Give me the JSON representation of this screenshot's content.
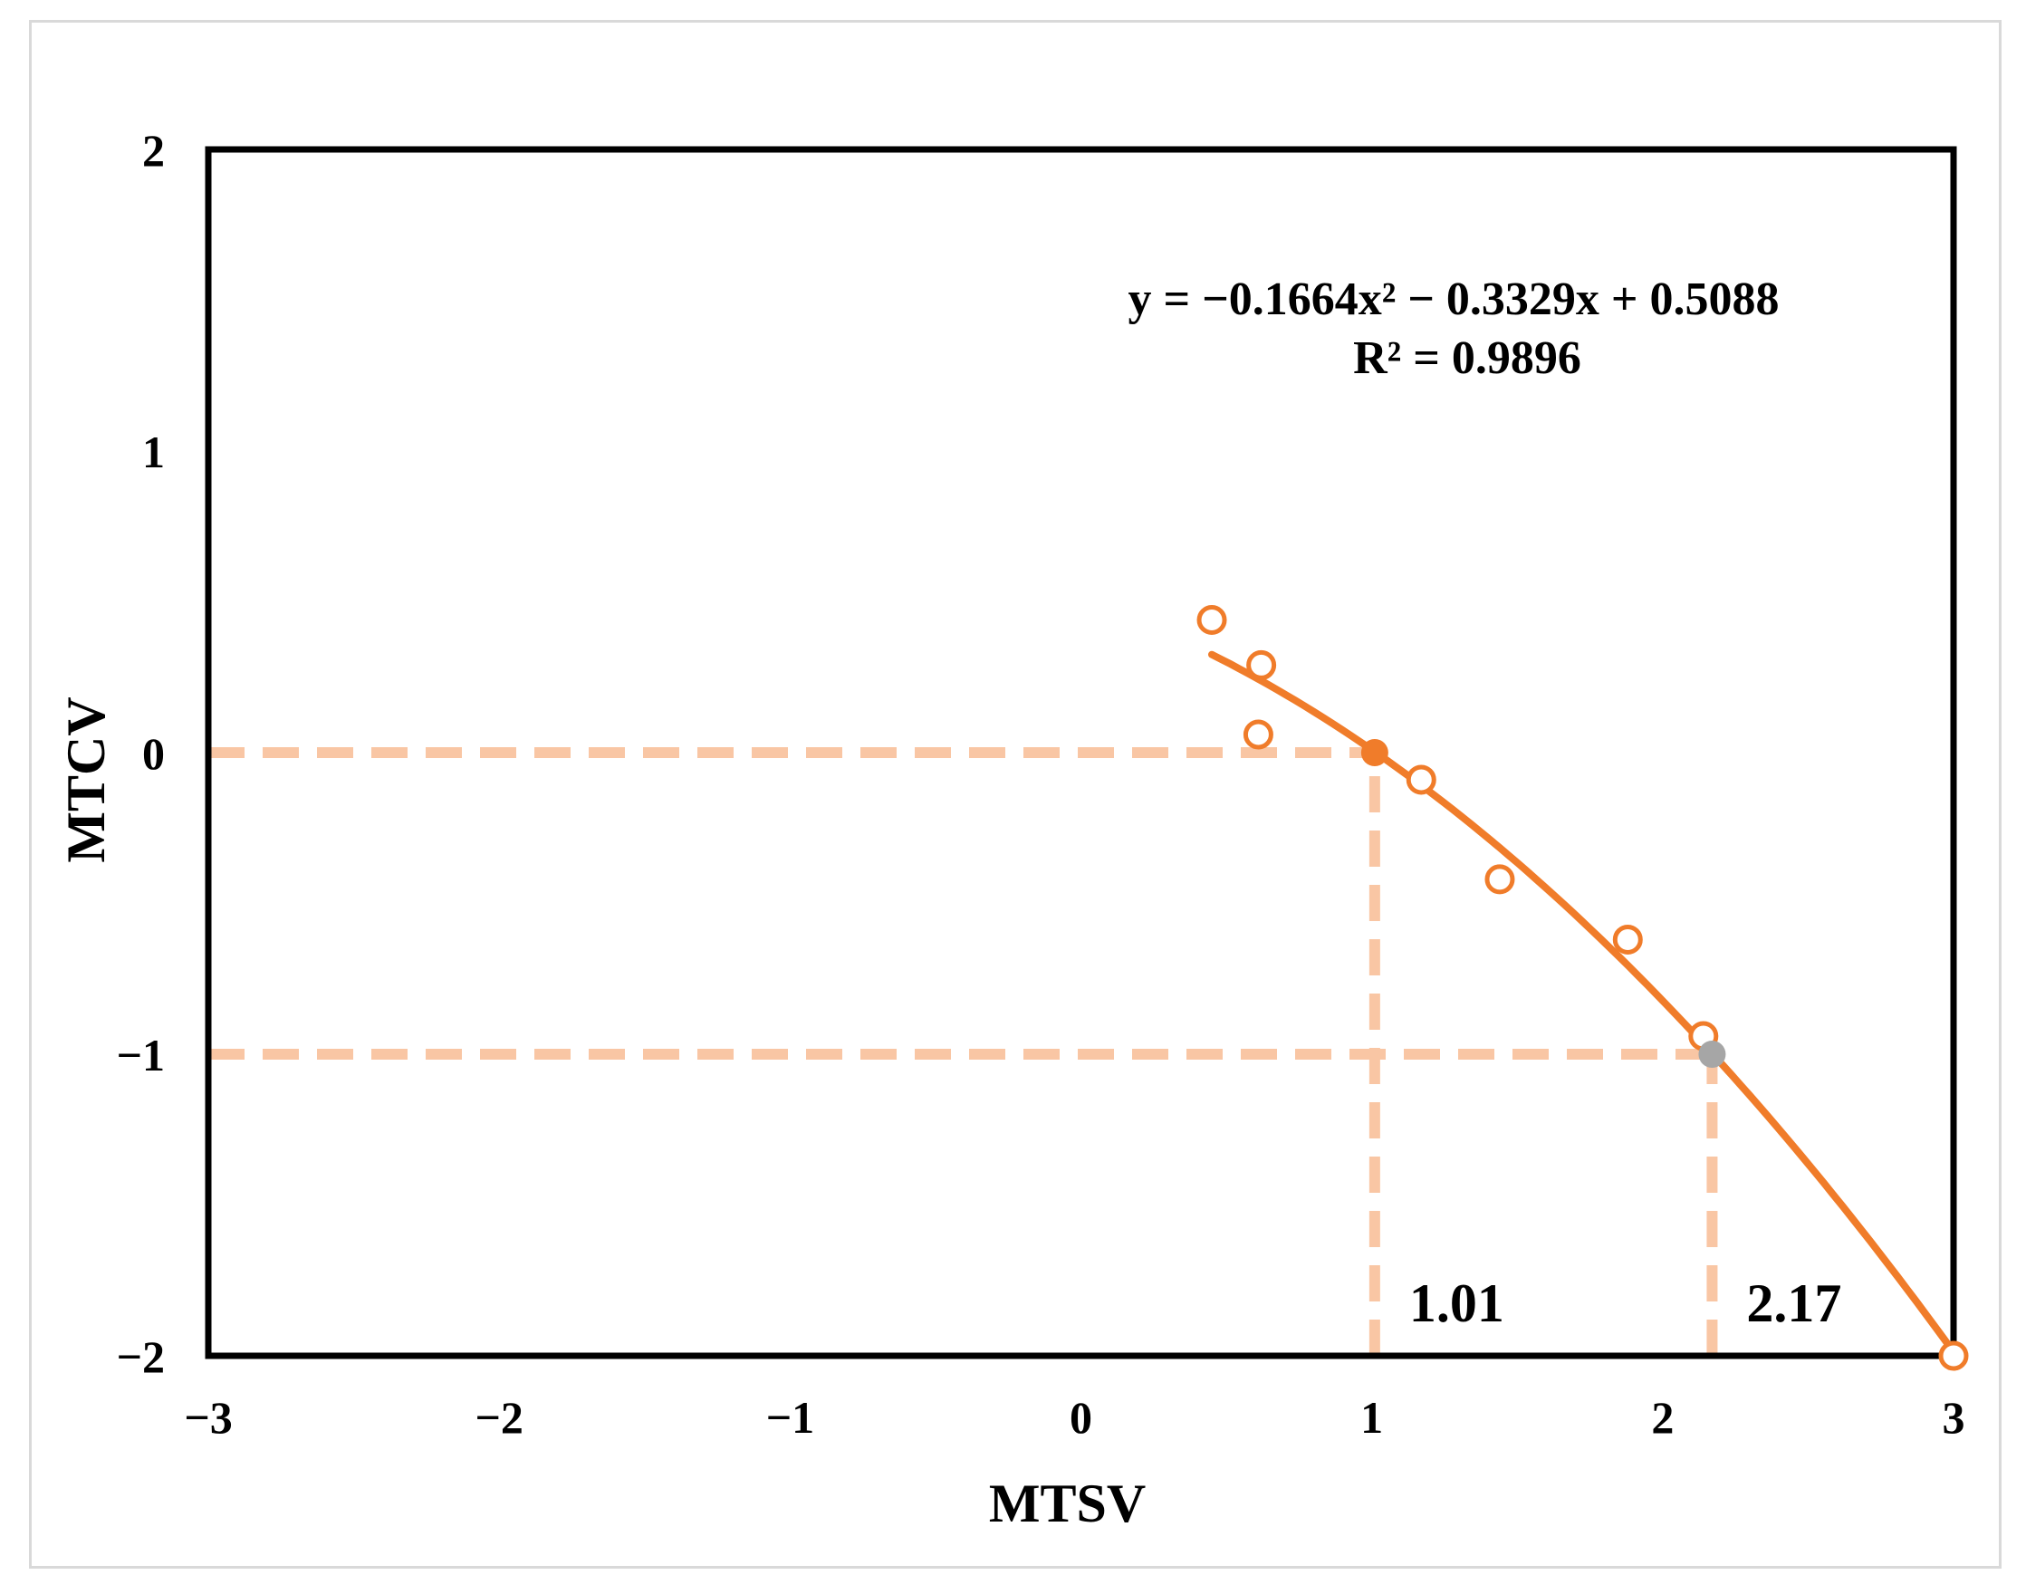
{
  "chart_data": {
    "type": "scatter",
    "title": "",
    "xlabel": "MTSV",
    "ylabel": "MTCV",
    "xlim": [
      -3,
      3
    ],
    "ylim": [
      -2,
      2
    ],
    "xticks": [
      -3,
      -2,
      -1,
      0,
      1,
      2,
      3
    ],
    "yticks": [
      -2,
      -1,
      0,
      1,
      2
    ],
    "xtick_labels": [
      "−3",
      "−2",
      "−1",
      "0",
      "1",
      "2",
      "3"
    ],
    "ytick_labels": [
      "−2",
      "−1",
      "0",
      "1",
      "2"
    ],
    "grid": false,
    "series": [
      {
        "kind": "scatter-open",
        "color": "#f07c2a",
        "points": [
          {
            "x": 0.45,
            "y": 0.44
          },
          {
            "x": 0.62,
            "y": 0.29
          },
          {
            "x": 0.61,
            "y": 0.06
          },
          {
            "x": 1.17,
            "y": -0.09
          },
          {
            "x": 1.44,
            "y": -0.42
          },
          {
            "x": 1.88,
            "y": -0.62
          },
          {
            "x": 2.14,
            "y": -0.94
          },
          {
            "x": 3.0,
            "y": -2.0
          }
        ]
      },
      {
        "kind": "fit-line",
        "color": "#f07c2a",
        "coefficients": {
          "a": -0.1664,
          "b": -0.3329,
          "c": 0.5088
        },
        "x_range": [
          0.45,
          3.0
        ]
      }
    ],
    "highlight_points": [
      {
        "x": 1.01,
        "y": 0,
        "color": "#f07c2a"
      },
      {
        "x": 2.17,
        "y": -1,
        "color": "#a6a6a6"
      }
    ],
    "reference_lines": {
      "color": "#f9c6a4",
      "horizontal": [
        {
          "y": 0,
          "x_to": 1.01
        },
        {
          "y": -1,
          "x_to": 2.17
        }
      ],
      "vertical": [
        {
          "x": 1.01,
          "y_from": -2,
          "y_to": 0,
          "label": "1.01"
        },
        {
          "x": 2.17,
          "y_from": -2,
          "y_to": -1,
          "label": "2.17"
        }
      ]
    },
    "equation": {
      "line1": "y = −0.1664x² − 0.3329x + 0.5088",
      "line2": "R² = 0.9896"
    }
  }
}
